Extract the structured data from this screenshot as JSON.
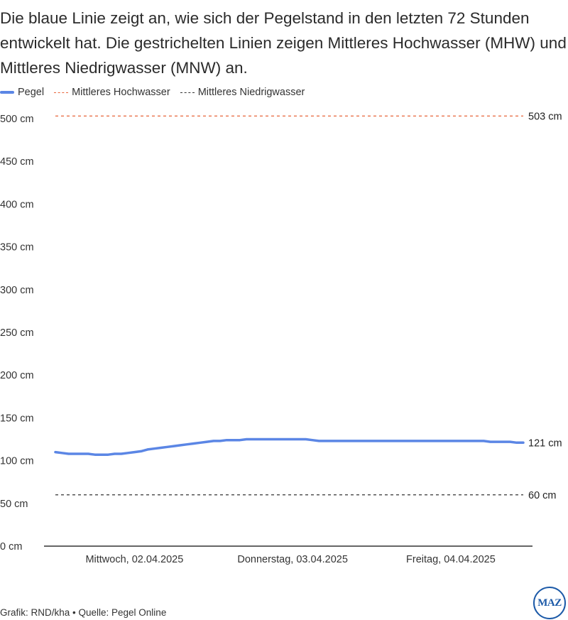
{
  "intro": "Die blaue Linie zeigt an, wie sich der Pegelstand in den letzten 72 Stunden entwickelt hat. Die gestrichelten Linien zeigen Mittleres Hochwasser (MHW) und Mittleres Niedrigwasser (MNW) an.",
  "legend": [
    {
      "label": "Pegel",
      "color": "#5b86e5",
      "style": "solid"
    },
    {
      "label": "Mittleres Hochwasser",
      "color": "#e8653a",
      "style": "dashed"
    },
    {
      "label": "Mittleres Niedrigwasser",
      "color": "#333333",
      "style": "dashed"
    }
  ],
  "chart_data": {
    "type": "line",
    "title": "",
    "xlabel": "",
    "ylabel": "",
    "ylim": [
      0,
      500
    ],
    "yticks": [
      0,
      50,
      100,
      150,
      200,
      250,
      300,
      350,
      400,
      450,
      500
    ],
    "y_unit": "cm",
    "xlim": [
      "2025-04-02T00:00",
      "2025-04-04T23:00"
    ],
    "x_tick_labels": [
      {
        "x": "2025-04-02T12:00",
        "label": "Mittwoch, 02.04.2025"
      },
      {
        "x": "2025-04-03T12:00",
        "label": "Donnerstag, 03.04.2025"
      },
      {
        "x": "2025-04-04T12:00",
        "label": "Freitag, 04.04.2025"
      }
    ],
    "legend_position": "top-left",
    "grid": false,
    "series": [
      {
        "name": "Pegel",
        "color": "#5b86e5",
        "end_label": "121 cm",
        "points": [
          [
            "2025-04-02T00:00",
            110
          ],
          [
            "2025-04-02T01:00",
            109
          ],
          [
            "2025-04-02T02:00",
            108
          ],
          [
            "2025-04-02T03:00",
            108
          ],
          [
            "2025-04-02T04:00",
            108
          ],
          [
            "2025-04-02T05:00",
            108
          ],
          [
            "2025-04-02T06:00",
            107
          ],
          [
            "2025-04-02T07:00",
            107
          ],
          [
            "2025-04-02T08:00",
            107
          ],
          [
            "2025-04-02T09:00",
            108
          ],
          [
            "2025-04-02T10:00",
            108
          ],
          [
            "2025-04-02T11:00",
            109
          ],
          [
            "2025-04-02T12:00",
            110
          ],
          [
            "2025-04-02T13:00",
            111
          ],
          [
            "2025-04-02T14:00",
            113
          ],
          [
            "2025-04-02T15:00",
            114
          ],
          [
            "2025-04-02T16:00",
            115
          ],
          [
            "2025-04-02T17:00",
            116
          ],
          [
            "2025-04-02T18:00",
            117
          ],
          [
            "2025-04-02T19:00",
            118
          ],
          [
            "2025-04-02T20:00",
            119
          ],
          [
            "2025-04-02T21:00",
            120
          ],
          [
            "2025-04-02T22:00",
            121
          ],
          [
            "2025-04-02T23:00",
            122
          ],
          [
            "2025-04-03T00:00",
            123
          ],
          [
            "2025-04-03T01:00",
            123
          ],
          [
            "2025-04-03T02:00",
            124
          ],
          [
            "2025-04-03T03:00",
            124
          ],
          [
            "2025-04-03T04:00",
            124
          ],
          [
            "2025-04-03T05:00",
            125
          ],
          [
            "2025-04-03T06:00",
            125
          ],
          [
            "2025-04-03T07:00",
            125
          ],
          [
            "2025-04-03T08:00",
            125
          ],
          [
            "2025-04-03T09:00",
            125
          ],
          [
            "2025-04-03T10:00",
            125
          ],
          [
            "2025-04-03T11:00",
            125
          ],
          [
            "2025-04-03T12:00",
            125
          ],
          [
            "2025-04-03T13:00",
            125
          ],
          [
            "2025-04-03T14:00",
            125
          ],
          [
            "2025-04-03T15:00",
            124
          ],
          [
            "2025-04-03T16:00",
            123
          ],
          [
            "2025-04-03T17:00",
            123
          ],
          [
            "2025-04-03T18:00",
            123
          ],
          [
            "2025-04-03T19:00",
            123
          ],
          [
            "2025-04-03T20:00",
            123
          ],
          [
            "2025-04-03T21:00",
            123
          ],
          [
            "2025-04-03T22:00",
            123
          ],
          [
            "2025-04-03T23:00",
            123
          ],
          [
            "2025-04-04T00:00",
            123
          ],
          [
            "2025-04-04T01:00",
            123
          ],
          [
            "2025-04-04T02:00",
            123
          ],
          [
            "2025-04-04T03:00",
            123
          ],
          [
            "2025-04-04T04:00",
            123
          ],
          [
            "2025-04-04T05:00",
            123
          ],
          [
            "2025-04-04T06:00",
            123
          ],
          [
            "2025-04-04T07:00",
            123
          ],
          [
            "2025-04-04T08:00",
            123
          ],
          [
            "2025-04-04T09:00",
            123
          ],
          [
            "2025-04-04T10:00",
            123
          ],
          [
            "2025-04-04T11:00",
            123
          ],
          [
            "2025-04-04T12:00",
            123
          ],
          [
            "2025-04-04T13:00",
            123
          ],
          [
            "2025-04-04T14:00",
            123
          ],
          [
            "2025-04-04T15:00",
            123
          ],
          [
            "2025-04-04T16:00",
            123
          ],
          [
            "2025-04-04T17:00",
            123
          ],
          [
            "2025-04-04T18:00",
            122
          ],
          [
            "2025-04-04T19:00",
            122
          ],
          [
            "2025-04-04T20:00",
            122
          ],
          [
            "2025-04-04T21:00",
            122
          ],
          [
            "2025-04-04T22:00",
            121
          ],
          [
            "2025-04-04T23:00",
            121
          ]
        ]
      }
    ],
    "reference_lines": [
      {
        "name": "Mittleres Hochwasser",
        "value": 503,
        "label": "503 cm",
        "color": "#e8653a",
        "style": "dashed"
      },
      {
        "name": "Mittleres Niedrigwasser",
        "value": 60,
        "label": "60 cm",
        "color": "#333333",
        "style": "dashed"
      }
    ]
  },
  "footer": "Grafik: RND/kha • Quelle: Pegel Online",
  "logo": "MAZ"
}
